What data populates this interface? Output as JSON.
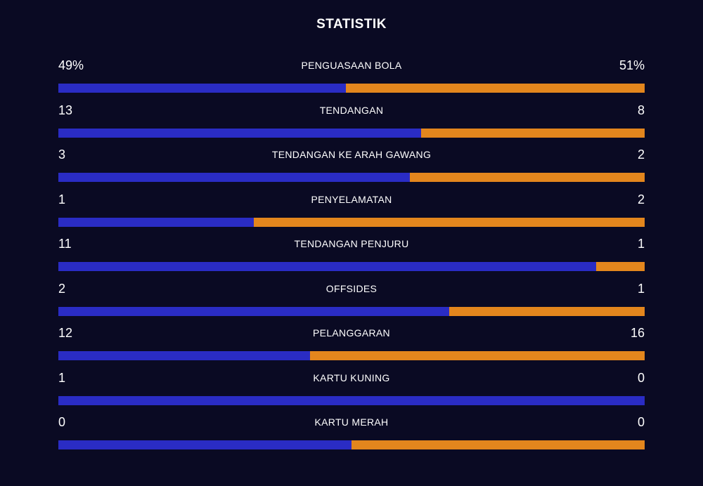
{
  "title": "STATISTIK",
  "colors": {
    "background": "#0a0a23",
    "home": "#2a2cc4",
    "away": "#e3861d"
  },
  "stats": [
    {
      "label": "PENGUASAAN BOLA",
      "home": "49%",
      "away": "51%",
      "home_share": 0.49
    },
    {
      "label": "TENDANGAN",
      "home": "13",
      "away": "8",
      "home_share": 0.619
    },
    {
      "label": "TENDANGAN KE ARAH GAWANG",
      "home": "3",
      "away": "2",
      "home_share": 0.6
    },
    {
      "label": "PENYELAMATAN",
      "home": "1",
      "away": "2",
      "home_share": 0.333
    },
    {
      "label": "TENDANGAN PENJURU",
      "home": "11",
      "away": "1",
      "home_share": 0.917
    },
    {
      "label": "OFFSIDES",
      "home": "2",
      "away": "1",
      "home_share": 0.667
    },
    {
      "label": "PELANGGARAN",
      "home": "12",
      "away": "16",
      "home_share": 0.429
    },
    {
      "label": "KARTU KUNING",
      "home": "1",
      "away": "0",
      "home_share": 1.0
    },
    {
      "label": "KARTU MERAH",
      "home": "0",
      "away": "0",
      "home_share": 0.5
    }
  ]
}
